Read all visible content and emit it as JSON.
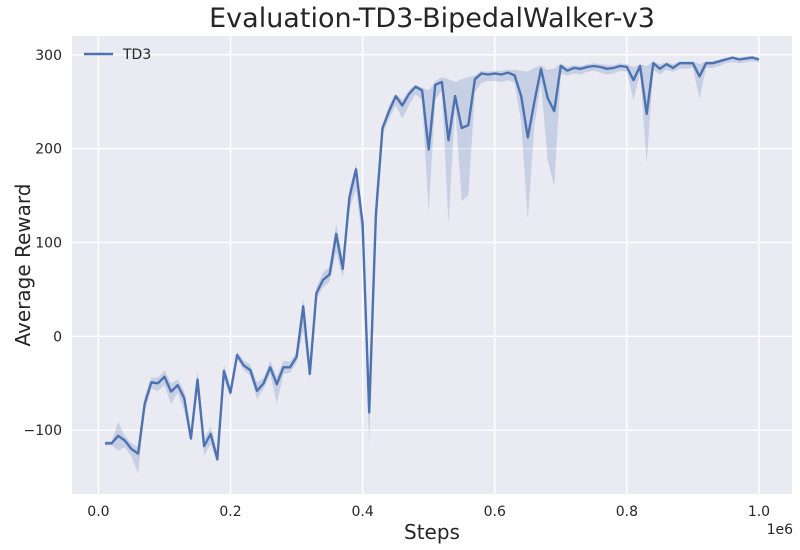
{
  "chart_data": {
    "type": "line",
    "title": "Evaluation-TD3-BipedalWalker-v3",
    "xlabel": "Steps",
    "ylabel": "Average Reward",
    "x_scale_note": "1e6",
    "xlim": [
      -0.04,
      1.05
    ],
    "ylim": [
      -168,
      320
    ],
    "xticks": [
      0.0,
      0.2,
      0.4,
      0.6,
      0.8,
      1.0
    ],
    "xtick_labels": [
      "0.0",
      "0.2",
      "0.4",
      "0.6",
      "0.8",
      "1.0"
    ],
    "yticks": [
      -100,
      0,
      100,
      200,
      300
    ],
    "ytick_labels": [
      "−100",
      "0",
      "100",
      "200",
      "300"
    ],
    "grid": true,
    "legend": {
      "position": "top-left",
      "entries": [
        "TD3"
      ]
    },
    "colors": {
      "line": "#4c72b0",
      "band": "#4c72b0",
      "background": "#eaeaf2",
      "grid": "#ffffff"
    },
    "series": [
      {
        "name": "TD3",
        "x": [
          0.01,
          0.02,
          0.03,
          0.04,
          0.05,
          0.06,
          0.07,
          0.08,
          0.09,
          0.1,
          0.11,
          0.12,
          0.13,
          0.14,
          0.15,
          0.16,
          0.17,
          0.18,
          0.19,
          0.2,
          0.21,
          0.22,
          0.23,
          0.24,
          0.25,
          0.26,
          0.27,
          0.28,
          0.29,
          0.3,
          0.31,
          0.32,
          0.33,
          0.34,
          0.35,
          0.36,
          0.37,
          0.38,
          0.39,
          0.4,
          0.41,
          0.42,
          0.43,
          0.44,
          0.45,
          0.46,
          0.47,
          0.48,
          0.49,
          0.5,
          0.51,
          0.52,
          0.53,
          0.54,
          0.55,
          0.56,
          0.57,
          0.58,
          0.59,
          0.6,
          0.61,
          0.62,
          0.63,
          0.64,
          0.65,
          0.66,
          0.67,
          0.68,
          0.69,
          0.7,
          0.71,
          0.72,
          0.73,
          0.74,
          0.75,
          0.76,
          0.77,
          0.78,
          0.79,
          0.8,
          0.81,
          0.82,
          0.83,
          0.84,
          0.85,
          0.86,
          0.87,
          0.88,
          0.89,
          0.9,
          0.91,
          0.92,
          0.93,
          0.94,
          0.95,
          0.96,
          0.97,
          0.98,
          0.99,
          1.0
        ],
        "y": [
          -114,
          -114,
          -106,
          -111,
          -120,
          -125,
          -72,
          -49,
          -50,
          -43,
          -59,
          -52,
          -66,
          -109,
          -46,
          -117,
          -104,
          -131,
          -37,
          -60,
          -20,
          -31,
          -36,
          -58,
          -50,
          -33,
          -51,
          -33,
          -33,
          -22,
          32,
          -40,
          46,
          60,
          66,
          109,
          72,
          148,
          178,
          120,
          -81,
          130,
          222,
          240,
          256,
          246,
          258,
          266,
          262,
          199,
          268,
          271,
          209,
          256,
          222,
          225,
          274,
          280,
          279,
          280,
          279,
          281,
          278,
          256,
          212,
          250,
          285,
          254,
          240,
          288,
          283,
          286,
          285,
          287,
          288,
          287,
          285,
          286,
          288,
          287,
          273,
          288,
          237,
          291,
          285,
          290,
          286,
          291,
          291,
          291,
          277,
          291,
          291,
          293,
          295,
          297,
          295,
          296,
          297,
          295
        ],
        "lower": [
          -116,
          -116,
          -122,
          -118,
          -128,
          -146,
          -80,
          -56,
          -58,
          -52,
          -72,
          -60,
          -80,
          -112,
          -60,
          -127,
          -115,
          -134,
          -45,
          -66,
          -24,
          -36,
          -42,
          -67,
          -56,
          -40,
          -72,
          -40,
          -39,
          -28,
          6,
          -46,
          40,
          52,
          58,
          90,
          62,
          135,
          157,
          102,
          -116,
          107,
          215,
          232,
          246,
          232,
          246,
          258,
          252,
          133,
          252,
          262,
          120,
          246,
          144,
          150,
          260,
          270,
          272,
          272,
          271,
          273,
          270,
          228,
          124,
          225,
          270,
          188,
          160,
          280,
          278,
          280,
          279,
          282,
          283,
          281,
          279,
          280,
          283,
          282,
          251,
          282,
          184,
          284,
          279,
          284,
          282,
          285,
          285,
          286,
          253,
          286,
          286,
          288,
          291,
          292,
          291,
          292,
          293,
          292
        ],
        "upper": [
          -112,
          -112,
          -91,
          -106,
          -114,
          -118,
          -64,
          -44,
          -44,
          -36,
          -50,
          -46,
          -58,
          -104,
          -36,
          -109,
          -96,
          -124,
          -30,
          -54,
          -16,
          -26,
          -30,
          -49,
          -44,
          -26,
          -43,
          -26,
          -27,
          -17,
          40,
          -34,
          52,
          68,
          74,
          120,
          82,
          156,
          184,
          124,
          -58,
          152,
          225,
          246,
          258,
          252,
          262,
          268,
          265,
          262,
          272,
          276,
          274,
          271,
          274,
          276,
          278,
          283,
          282,
          283,
          283,
          284,
          284,
          283,
          282,
          286,
          289,
          284,
          285,
          291,
          287,
          289,
          288,
          290,
          291,
          290,
          289,
          289,
          291,
          290,
          287,
          290,
          288,
          293,
          290,
          292,
          290,
          293,
          293,
          293,
          290,
          293,
          293,
          295,
          297,
          298,
          297,
          298,
          299,
          297
        ]
      }
    ]
  }
}
